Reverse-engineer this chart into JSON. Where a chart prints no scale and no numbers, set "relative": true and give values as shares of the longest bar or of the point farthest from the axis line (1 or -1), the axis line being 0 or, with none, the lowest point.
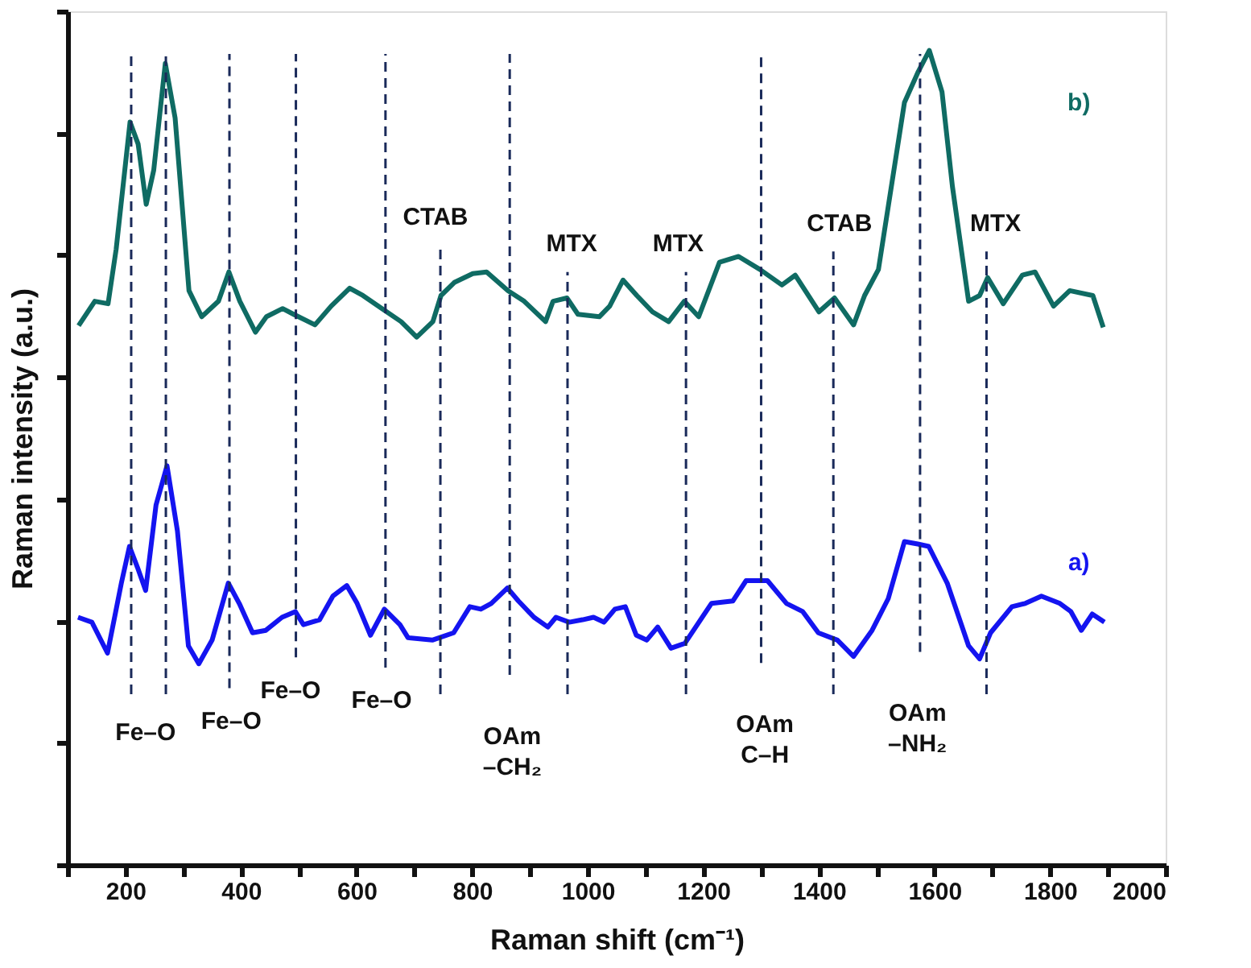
{
  "chart_data": {
    "type": "line",
    "relative": true,
    "xlabel": "Raman shift (cm⁻¹)",
    "ylabel": "Raman intensity (a.u.)",
    "tick_labels": "x",
    "grid": false,
    "legend": false,
    "line_style": "solid",
    "marker": "none",
    "xlim": [
      100,
      2000
    ],
    "xticks": [
      {
        "value": 100,
        "label": null
      },
      200,
      {
        "value": 300,
        "label": null
      },
      400,
      {
        "value": 500,
        "label": null
      },
      600,
      {
        "value": 700,
        "label": null
      },
      800,
      {
        "value": 900,
        "label": null
      },
      1000,
      {
        "value": 1100,
        "label": null
      },
      1200,
      {
        "value": 1300,
        "label": null
      },
      1400,
      {
        "value": 1500,
        "label": null
      },
      1600,
      {
        "value": 1700,
        "label": null
      },
      1800,
      {
        "value": 1900,
        "label": null
      },
      2000
    ],
    "series": [
      {
        "name": "b)",
        "color": "#0f6b63",
        "x": [
          119,
          147,
          170,
          184,
          208,
          222,
          236,
          249,
          269,
          286,
          310,
          332,
          361,
          379,
          398,
          425,
          444,
          472,
          491,
          528,
          556,
          588,
          611,
          644,
          677,
          704,
          732,
          746,
          769,
          801,
          825,
          862,
          890,
          927,
          940,
          964,
          983,
          1020,
          1038,
          1061,
          1085,
          1112,
          1140,
          1167,
          1192,
          1228,
          1261,
          1298,
          1336,
          1359,
          1400,
          1427,
          1460,
          1479,
          1503,
          1548,
          1572,
          1591,
          1613,
          1631,
          1659,
          1678,
          1692,
          1719,
          1752,
          1774,
          1806,
          1834,
          1874,
          1892
        ],
        "values": [
          0.662,
          0.692,
          0.689,
          0.756,
          0.912,
          0.885,
          0.811,
          0.853,
          0.984,
          0.917,
          0.705,
          0.673,
          0.692,
          0.728,
          0.692,
          0.654,
          0.673,
          0.683,
          0.676,
          0.663,
          0.686,
          0.708,
          0.699,
          0.683,
          0.667,
          0.648,
          0.667,
          0.699,
          0.715,
          0.726,
          0.728,
          0.705,
          0.692,
          0.667,
          0.692,
          0.696,
          0.676,
          0.673,
          0.686,
          0.718,
          0.699,
          0.679,
          0.667,
          0.692,
          0.673,
          0.74,
          0.747,
          0.731,
          0.712,
          0.724,
          0.679,
          0.696,
          0.663,
          0.699,
          0.731,
          0.936,
          0.974,
          1.0,
          0.949,
          0.833,
          0.692,
          0.699,
          0.721,
          0.689,
          0.724,
          0.728,
          0.686,
          0.705,
          0.699,
          0.66
        ]
      },
      {
        "name": "a)",
        "color": "#1414f0",
        "x": [
          118,
          142,
          169,
          193,
          207,
          221,
          235,
          253,
          272,
          290,
          309,
          327,
          350,
          378,
          397,
          420,
          443,
          471,
          494,
          508,
          536,
          559,
          583,
          601,
          624,
          648,
          675,
          689,
          731,
          768,
          796,
          815,
          833,
          861,
          880,
          907,
          931,
          945,
          968,
          991,
          1010,
          1028,
          1047,
          1065,
          1084,
          1102,
          1121,
          1144,
          1168,
          1214,
          1251,
          1274,
          1311,
          1344,
          1372,
          1399,
          1432,
          1460,
          1492,
          1520,
          1548,
          1571,
          1590,
          1622,
          1659,
          1678,
          1697,
          1734,
          1757,
          1785,
          1817,
          1836,
          1854,
          1873,
          1894
        ],
        "values": [
          0.304,
          0.298,
          0.26,
          0.346,
          0.391,
          0.365,
          0.337,
          0.442,
          0.49,
          0.41,
          0.269,
          0.247,
          0.276,
          0.346,
          0.321,
          0.285,
          0.288,
          0.304,
          0.311,
          0.295,
          0.301,
          0.33,
          0.343,
          0.321,
          0.282,
          0.314,
          0.295,
          0.279,
          0.276,
          0.285,
          0.317,
          0.314,
          0.321,
          0.34,
          0.324,
          0.304,
          0.292,
          0.304,
          0.298,
          0.301,
          0.304,
          0.298,
          0.314,
          0.317,
          0.282,
          0.276,
          0.292,
          0.266,
          0.272,
          0.321,
          0.324,
          0.349,
          0.349,
          0.321,
          0.311,
          0.285,
          0.276,
          0.256,
          0.288,
          0.327,
          0.397,
          0.394,
          0.391,
          0.346,
          0.269,
          0.253,
          0.285,
          0.317,
          0.321,
          0.33,
          0.321,
          0.311,
          0.288,
          0.308,
          0.298
        ]
      }
    ],
    "ref_lines": [
      {
        "axis": "x",
        "value": 210,
        "color": "#1a2a5a",
        "line_style": "dashed"
      },
      {
        "axis": "x",
        "value": 270,
        "color": "#1a2a5a",
        "line_style": "dashed"
      },
      {
        "axis": "x",
        "value": 380,
        "color": "#1a2a5a",
        "line_style": "dashed"
      },
      {
        "axis": "x",
        "value": 495,
        "color": "#1a2a5a",
        "line_style": "dashed"
      },
      {
        "axis": "x",
        "value": 650,
        "color": "#1a2a5a",
        "line_style": "dashed"
      },
      {
        "axis": "x",
        "value": 745,
        "color": "#1a2a5a",
        "line_style": "dashed"
      },
      {
        "axis": "x",
        "value": 865,
        "color": "#1a2a5a",
        "line_style": "dashed"
      },
      {
        "axis": "x",
        "value": 965,
        "color": "#1a2a5a",
        "line_style": "dashed"
      },
      {
        "axis": "x",
        "value": 1170,
        "color": "#1a2a5a",
        "line_style": "dashed"
      },
      {
        "axis": "x",
        "value": 1300,
        "color": "#1a2a5a",
        "line_style": "dashed"
      },
      {
        "axis": "x",
        "value": 1425,
        "color": "#1a2a5a",
        "line_style": "dashed"
      },
      {
        "axis": "x",
        "value": 1575,
        "color": "#1a2a5a",
        "line_style": "dashed"
      },
      {
        "axis": "x",
        "value": 1690,
        "color": "#1a2a5a",
        "line_style": "dashed"
      }
    ],
    "annotations": [
      "CTAB",
      "MTX",
      "MTX",
      "CTAB",
      "MTX",
      "Fe–O",
      "Fe–O",
      "Fe–O",
      "Fe–O",
      "OAm\n–CH₂",
      "OAm\nC–H",
      "OAm\n–NH₂"
    ]
  }
}
